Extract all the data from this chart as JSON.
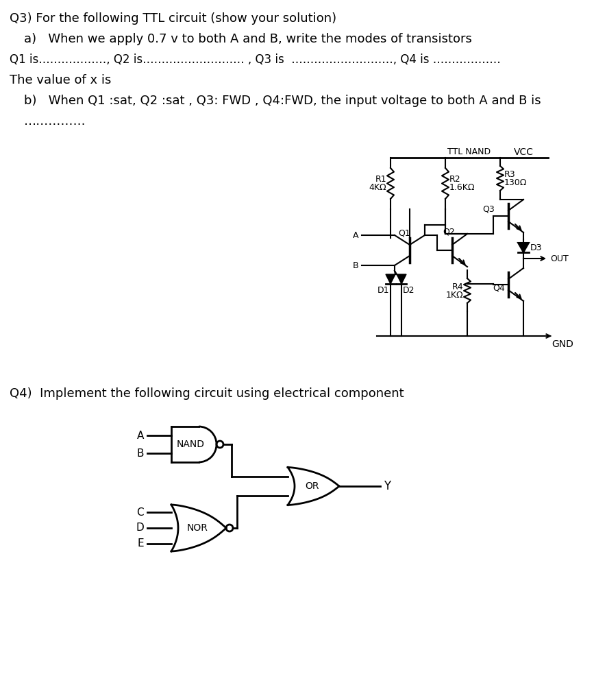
{
  "background_color": "#ffffff",
  "text_color": "#000000",
  "title_q3": "Q3) For the following TTL circuit (show your solution)",
  "line_a": "a)   When we apply 0.7 v to both A and B, write the modes of transistors",
  "line_q": "Q1 is………………, Q2 is……………………… , Q3 is  ………………………, Q4 is ………………",
  "line_x": "The value of x is",
  "line_b": "b)   When Q1 :sat, Q2 :sat , Q3: FWD , Q4:FWD, the input voltage to both A and B is",
  "line_dots": "……………",
  "title_q4": "Q4)  Implement the following circuit using electrical component",
  "circuit_title": "TTL NAND",
  "vcc": "VCC",
  "gnd": "GND",
  "r1_label": "R1",
  "r1_val": "4KΩ",
  "r2_label": "R2",
  "r2_val": "1.6KΩ",
  "r3_label": "R3",
  "r3_val": "130Ω",
  "r4_label": "R4",
  "r4_val": "1KΩ",
  "q1_label": "Q1",
  "q2_label": "Q2",
  "q3_label": "Q3",
  "q4_label": "Q4",
  "d1_label": "D1",
  "d2_label": "D2",
  "d3_label": "D3",
  "out_label": "OUT",
  "a_label": "A",
  "b_label": "B",
  "nand_label": "NAND",
  "nor_label": "NOR",
  "or_label": "OR",
  "y_label": "Y",
  "gate_inputs_nand": [
    "A",
    "B"
  ],
  "gate_inputs_nor": [
    "C",
    "D",
    "E"
  ],
  "font_size_main": 13,
  "font_size_circuit": 9,
  "font_size_gate": 11
}
